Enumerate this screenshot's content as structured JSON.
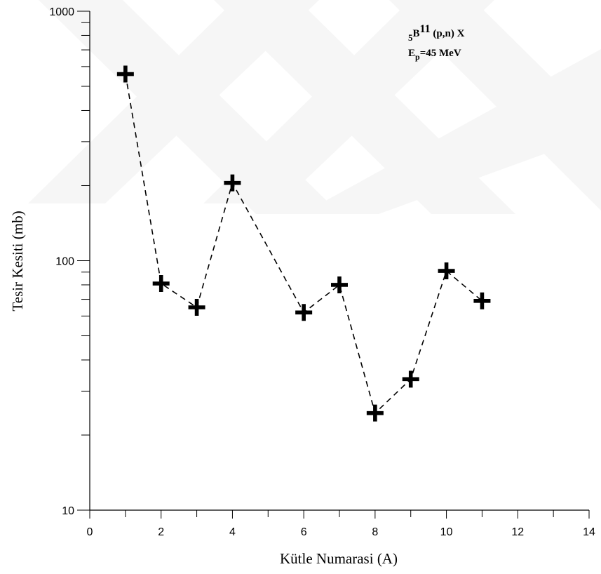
{
  "chart_data": {
    "type": "scatter",
    "title": "",
    "xlabel": "Kütle Numarasi (A)",
    "ylabel": "Tesir Kesiti (mb)",
    "xlim": [
      0,
      14
    ],
    "ylim": [
      10,
      1000
    ],
    "y_scale": "log",
    "grid": false,
    "x_ticks": [
      "0",
      "2",
      "4",
      "6",
      "8",
      "10",
      "12",
      "14"
    ],
    "y_ticks": [
      "10",
      "100",
      "1000"
    ],
    "annotation": {
      "line1_prefix": "5",
      "line1_main": "B",
      "line1_sup": "11",
      "line1_suffix": " (p,n) X",
      "line2_main": "E",
      "line2_sub": "p",
      "line2_suffix": "=45 MeV"
    },
    "marker": "plus",
    "line_style": "dashed",
    "series": [
      {
        "x": [
          1,
          2,
          3,
          4,
          6,
          7,
          8,
          9,
          10,
          11
        ],
        "y": [
          560,
          81,
          65,
          205,
          62,
          80,
          24.5,
          33.5,
          91,
          69
        ]
      }
    ]
  }
}
